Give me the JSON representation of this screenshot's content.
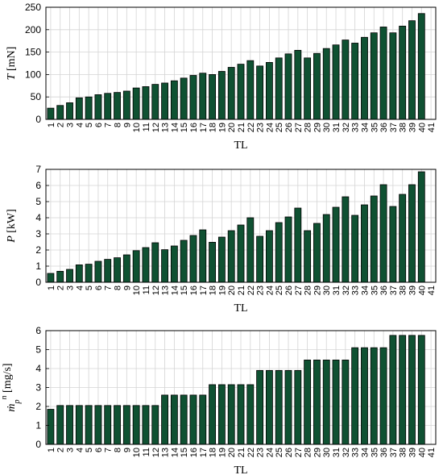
{
  "colors": {
    "bar": "#0f5132",
    "grid": "#d4d4d4",
    "frame": "#000000"
  },
  "chart_data": [
    {
      "type": "bar",
      "categories": [
        "1",
        "2",
        "3",
        "4",
        "5",
        "6",
        "7",
        "8",
        "9",
        "10",
        "11",
        "12",
        "13",
        "14",
        "15",
        "16",
        "17",
        "18",
        "19",
        "20",
        "21",
        "22",
        "23",
        "24",
        "25",
        "26",
        "27",
        "28",
        "29",
        "30",
        "31",
        "32",
        "33",
        "34",
        "35",
        "36",
        "37",
        "38",
        "39",
        "40",
        "41"
      ],
      "values": [
        25,
        31,
        37,
        48,
        50,
        55,
        58,
        60,
        63,
        70,
        73,
        78,
        81,
        86,
        92,
        98,
        103,
        100,
        107,
        116,
        123,
        131,
        119,
        127,
        137,
        146,
        154,
        137,
        147,
        158,
        166,
        177,
        170,
        183,
        193,
        206,
        193,
        208,
        220,
        236,
        null
      ],
      "ylabel_var": "T",
      "ylabel_unit": "[mN]",
      "xlabel": "TL",
      "ylim": [
        0,
        250
      ],
      "yticks": [
        0,
        50,
        100,
        150,
        200,
        250
      ],
      "grid": true
    },
    {
      "type": "bar",
      "categories": [
        "1",
        "2",
        "3",
        "4",
        "5",
        "6",
        "7",
        "8",
        "9",
        "10",
        "11",
        "12",
        "13",
        "14",
        "15",
        "16",
        "17",
        "18",
        "19",
        "20",
        "21",
        "22",
        "23",
        "24",
        "25",
        "26",
        "27",
        "28",
        "29",
        "30",
        "31",
        "32",
        "33",
        "34",
        "35",
        "36",
        "37",
        "38",
        "39",
        "40",
        "41"
      ],
      "values": [
        0.55,
        0.68,
        0.8,
        1.08,
        1.12,
        1.3,
        1.42,
        1.52,
        1.7,
        1.96,
        2.15,
        2.45,
        2.02,
        2.25,
        2.6,
        2.9,
        3.25,
        2.48,
        2.8,
        3.2,
        3.55,
        4.0,
        2.85,
        3.2,
        3.7,
        4.05,
        4.6,
        3.2,
        3.65,
        4.2,
        4.65,
        5.3,
        4.15,
        4.8,
        5.35,
        6.05,
        4.7,
        5.45,
        6.05,
        6.85,
        null
      ],
      "ylabel_var": "P",
      "ylabel_unit": "[kW]",
      "xlabel": "TL",
      "ylim": [
        0,
        7
      ],
      "yticks": [
        0,
        1,
        2,
        3,
        4,
        5,
        6,
        7
      ],
      "grid": true
    },
    {
      "type": "bar",
      "categories": [
        "1",
        "2",
        "3",
        "4",
        "5",
        "6",
        "7",
        "8",
        "9",
        "10",
        "11",
        "12",
        "13",
        "14",
        "15",
        "16",
        "17",
        "18",
        "19",
        "20",
        "21",
        "22",
        "23",
        "24",
        "25",
        "26",
        "27",
        "28",
        "29",
        "30",
        "31",
        "32",
        "33",
        "34",
        "35",
        "36",
        "37",
        "38",
        "39",
        "40",
        "41"
      ],
      "values": [
        1.85,
        2.05,
        2.05,
        2.05,
        2.05,
        2.05,
        2.05,
        2.05,
        2.05,
        2.05,
        2.05,
        2.05,
        2.6,
        2.6,
        2.6,
        2.6,
        2.6,
        3.15,
        3.15,
        3.15,
        3.15,
        3.15,
        3.9,
        3.9,
        3.9,
        3.9,
        3.9,
        4.45,
        4.45,
        4.45,
        4.45,
        4.45,
        5.1,
        5.1,
        5.1,
        5.1,
        5.75,
        5.75,
        5.75,
        5.75,
        null
      ],
      "ylabel_var": "ṁ",
      "ylabel_sub": "p",
      "ylabel_sup": "n",
      "ylabel_unit": "[mg/s]",
      "xlabel": "TL",
      "ylim": [
        0,
        6
      ],
      "yticks": [
        0,
        1,
        2,
        3,
        4,
        5,
        6
      ],
      "grid": true
    }
  ]
}
